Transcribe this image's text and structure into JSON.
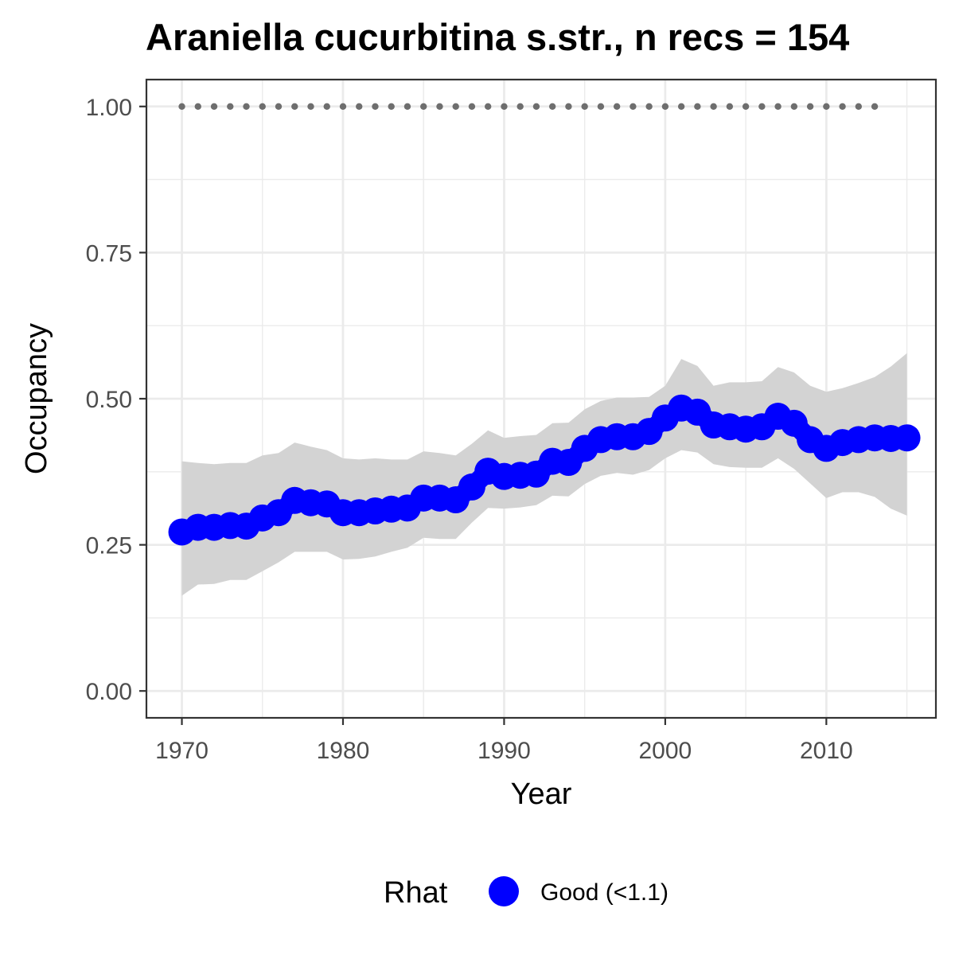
{
  "chart_data": {
    "type": "line",
    "title": "Araniella cucurbitina s.str., n recs = 154",
    "xlabel": "Year",
    "ylabel": "Occupancy",
    "xlim": [
      1967.8,
      2016.8
    ],
    "ylim": [
      -0.046,
      1.046
    ],
    "x_ticks": [
      1970,
      1980,
      1990,
      2000,
      2010
    ],
    "x_tick_labels": [
      "1970",
      "1980",
      "1990",
      "2000",
      "2010"
    ],
    "y_ticks": [
      0,
      0.25,
      0.5,
      0.75,
      1.0
    ],
    "y_tick_labels": [
      "0.00",
      "0.25",
      "0.50",
      "0.75",
      "1.00"
    ],
    "grid": true,
    "legend": {
      "title": "Rhat",
      "position": "bottom",
      "items": [
        {
          "label": "Good (<1.1)",
          "color": "#0000ff"
        }
      ]
    },
    "colors": {
      "mean": "#0000ff",
      "ribbon": "#d3d3d3",
      "reference": "#6e6e6e"
    },
    "series": [
      {
        "name": "Good (<1.1)",
        "x": [
          1970,
          1971,
          1972,
          1973,
          1974,
          1975,
          1976,
          1977,
          1978,
          1979,
          1980,
          1981,
          1982,
          1983,
          1984,
          1985,
          1986,
          1987,
          1988,
          1989,
          1990,
          1991,
          1992,
          1993,
          1994,
          1995,
          1996,
          1997,
          1998,
          1999,
          2000,
          2001,
          2002,
          2003,
          2004,
          2005,
          2006,
          2007,
          2008,
          2009,
          2010,
          2011,
          2012,
          2013,
          2014,
          2015
        ],
        "y": [
          0.272,
          0.28,
          0.28,
          0.283,
          0.282,
          0.296,
          0.305,
          0.326,
          0.322,
          0.32,
          0.305,
          0.305,
          0.308,
          0.311,
          0.313,
          0.33,
          0.33,
          0.327,
          0.349,
          0.376,
          0.367,
          0.369,
          0.371,
          0.393,
          0.391,
          0.415,
          0.43,
          0.435,
          0.435,
          0.444,
          0.467,
          0.484,
          0.477,
          0.455,
          0.452,
          0.448,
          0.452,
          0.47,
          0.458,
          0.43,
          0.415,
          0.425,
          0.43,
          0.433,
          0.432,
          0.433
        ],
        "lower": [
          0.163,
          0.182,
          0.183,
          0.19,
          0.19,
          0.205,
          0.22,
          0.238,
          0.238,
          0.238,
          0.225,
          0.226,
          0.23,
          0.238,
          0.245,
          0.262,
          0.26,
          0.26,
          0.288,
          0.313,
          0.312,
          0.314,
          0.318,
          0.334,
          0.333,
          0.354,
          0.368,
          0.373,
          0.37,
          0.378,
          0.398,
          0.412,
          0.408,
          0.388,
          0.383,
          0.382,
          0.382,
          0.398,
          0.38,
          0.355,
          0.33,
          0.34,
          0.34,
          0.332,
          0.312,
          0.3
        ],
        "upper": [
          0.393,
          0.39,
          0.388,
          0.39,
          0.39,
          0.403,
          0.407,
          0.425,
          0.418,
          0.412,
          0.398,
          0.396,
          0.398,
          0.396,
          0.396,
          0.41,
          0.407,
          0.403,
          0.423,
          0.446,
          0.433,
          0.436,
          0.438,
          0.458,
          0.459,
          0.482,
          0.496,
          0.502,
          0.502,
          0.503,
          0.522,
          0.568,
          0.556,
          0.522,
          0.528,
          0.528,
          0.53,
          0.554,
          0.545,
          0.522,
          0.512,
          0.518,
          0.527,
          0.537,
          0.555,
          0.578
        ]
      },
      {
        "name": "",
        "style": "dotted",
        "x": [
          1970,
          1971,
          1972,
          1973,
          1974,
          1975,
          1976,
          1977,
          1978,
          1979,
          1980,
          1981,
          1982,
          1983,
          1984,
          1985,
          1986,
          1987,
          1988,
          1989,
          1990,
          1991,
          1992,
          1993,
          1994,
          1995,
          1996,
          1997,
          1998,
          1999,
          2000,
          2001,
          2002,
          2003,
          2004,
          2005,
          2006,
          2007,
          2008,
          2009,
          2010,
          2011,
          2012,
          2013
        ],
        "y": [
          1,
          1,
          1,
          1,
          1,
          1,
          1,
          1,
          1,
          1,
          1,
          1,
          1,
          1,
          1,
          1,
          1,
          1,
          1,
          1,
          1,
          1,
          1,
          1,
          1,
          1,
          1,
          1,
          1,
          1,
          1,
          1,
          1,
          1,
          1,
          1,
          1,
          1,
          1,
          1,
          1,
          1,
          1,
          1
        ]
      }
    ]
  }
}
